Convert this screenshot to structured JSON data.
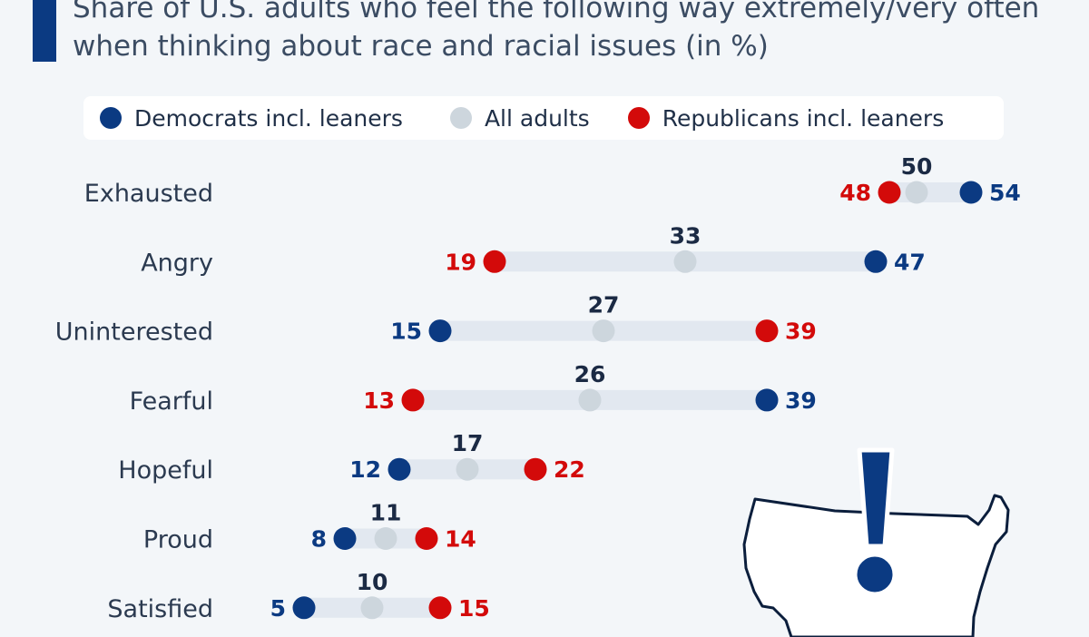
{
  "subtitle": "Share of U.S. adults who feel the following way extremely/very often when thinking about race and racial issues (in %)",
  "colors": {
    "democrats": "#0b3a82",
    "all_adults": "#cdd6dd",
    "republicans": "#d30a0a",
    "connector": "#e2e8f0",
    "all_label": "#1b2a44"
  },
  "legend": [
    {
      "label": "Democrats incl. leaners",
      "color": "#0b3a82"
    },
    {
      "label": "All adults",
      "color": "#cdd6dd"
    },
    {
      "label": "Republicans incl. leaners",
      "color": "#d30a0a"
    }
  ],
  "illustration": {
    "name": "us-map-with-exclamation-icon"
  },
  "chart_data": {
    "type": "scatter",
    "subtype": "dumbbell",
    "subtitle": "Share of U.S. adults who feel the following way extremely/very often when thinking about race and racial issues (in %)",
    "categories": [
      "Exhausted",
      "Angry",
      "Uninterested",
      "Fearful",
      "Hopeful",
      "Proud",
      "Satisfied"
    ],
    "series": [
      {
        "name": "Democrats incl. leaners",
        "values": [
          54,
          47,
          15,
          39,
          12,
          8,
          5
        ]
      },
      {
        "name": "All adults",
        "values": [
          50,
          33,
          27,
          26,
          17,
          11,
          10
        ]
      },
      {
        "name": "Republicans incl. leaners",
        "values": [
          48,
          19,
          39,
          13,
          22,
          14,
          15
        ]
      }
    ],
    "xlim": [
      0,
      60
    ],
    "grid": false,
    "legend_position": "top"
  }
}
